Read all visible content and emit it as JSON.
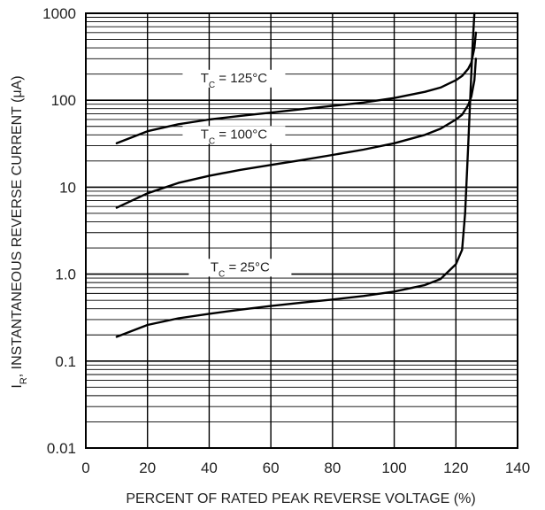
{
  "chart_data": {
    "type": "line",
    "xlabel": "PERCENT OF RATED PEAK REVERSE VOLTAGE (%)",
    "ylabel": {
      "symbol": "I",
      "subscript": "R",
      "rest": ", INSTANTANEOUS REVERSE CURRENT (μA)"
    },
    "xlim": [
      0,
      140
    ],
    "ylim": [
      0.01,
      1000
    ],
    "yscale": "log",
    "grid": true,
    "x_ticks": [
      "0",
      "20",
      "40",
      "60",
      "80",
      "100",
      "120",
      "140"
    ],
    "y_ticks": [
      "0.01",
      "0.1",
      "1.0",
      "10",
      "100",
      "1000"
    ],
    "series": [
      {
        "name": {
          "symbol": "T",
          "subscript": "C",
          "rest": " = 125°C"
        },
        "x": [
          10,
          20,
          30,
          40,
          50,
          60,
          70,
          80,
          90,
          100,
          110,
          115,
          120,
          122,
          124,
          125,
          126,
          126.5
        ],
        "y": [
          32,
          44,
          53,
          60,
          66,
          72,
          79,
          86,
          94,
          106,
          125,
          140,
          170,
          190,
          230,
          270,
          400,
          600
        ]
      },
      {
        "name": {
          "symbol": "T",
          "subscript": "C",
          "rest": " = 100°C"
        },
        "x": [
          10,
          20,
          30,
          40,
          50,
          60,
          70,
          80,
          90,
          100,
          110,
          115,
          120,
          122,
          124,
          125,
          126,
          126.5
        ],
        "y": [
          5.8,
          8.5,
          11.2,
          13.5,
          15.8,
          18,
          20.5,
          23.5,
          27,
          32,
          40,
          47,
          60,
          68,
          88,
          110,
          170,
          300
        ]
      },
      {
        "name": {
          "symbol": "T",
          "subscript": "C",
          "rest": " = 25°C"
        },
        "x": [
          10,
          20,
          30,
          40,
          50,
          60,
          70,
          80,
          90,
          100,
          110,
          115,
          120,
          122,
          123,
          124,
          125,
          125.5,
          126
        ],
        "y": [
          0.19,
          0.26,
          0.31,
          0.35,
          0.39,
          0.43,
          0.47,
          0.51,
          0.56,
          0.63,
          0.75,
          0.88,
          1.3,
          1.9,
          5,
          30,
          200,
          500,
          1000
        ]
      }
    ]
  }
}
